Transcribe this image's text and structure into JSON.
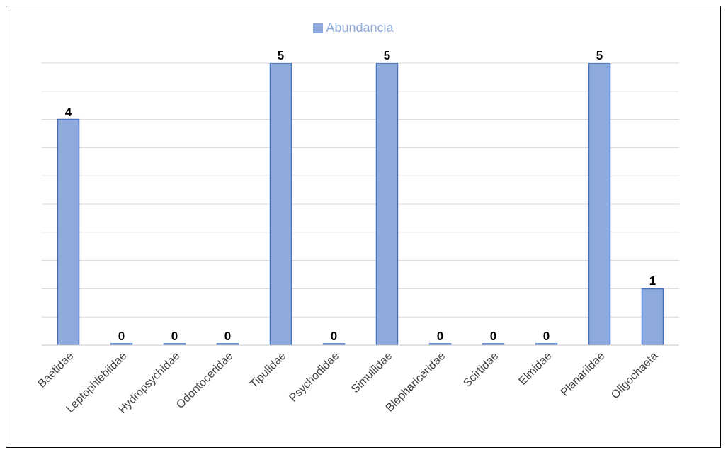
{
  "chart_data": {
    "type": "bar",
    "categories": [
      "Baetidae",
      "Leptophlebiidae",
      "Hydropsychidae",
      "Odontoceridae",
      "Tipulidae",
      "Psychodidae",
      "Simuliidae",
      "Blephariceridae",
      "Scirtidae",
      "Elmidae",
      "Planariidae",
      "Oligochaeta"
    ],
    "series": [
      {
        "name": "Abundancia",
        "color": "#8faadc",
        "values": [
          4,
          0,
          0,
          0,
          5,
          0,
          5,
          0,
          0,
          0,
          5,
          1
        ]
      }
    ],
    "tick_labels": "x",
    "grid": "y",
    "legend": "top",
    "data_labels": true
  }
}
